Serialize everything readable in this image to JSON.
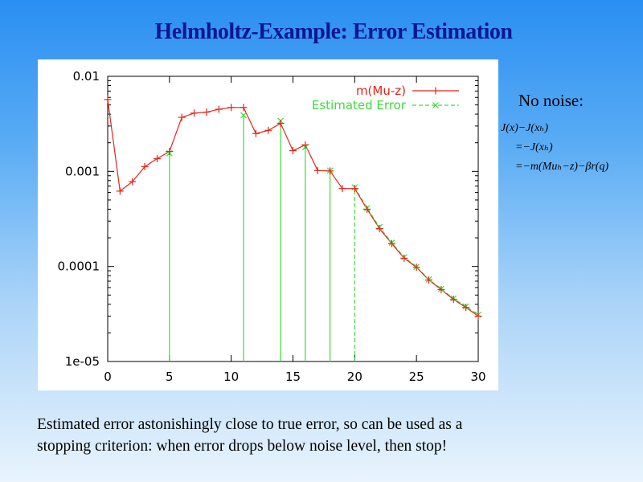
{
  "slide": {
    "title": "Helmholtz-Example: Error Estimation",
    "noise_heading": "No noise:",
    "formula_lines": [
      "J(x)−J(xₕ)",
      "=−J(xₕ)",
      "=−m(Muₕ−z)−βr(q)"
    ],
    "conclusion": "Estimated error astonishingly close to true error, so can be used as a stopping criterion: when error drops below noise level, then stop!"
  },
  "chart_data": {
    "type": "line",
    "xlim": [
      0,
      30
    ],
    "ylim": [
      1e-05,
      0.01
    ],
    "y_scale": "log",
    "x_ticks": [
      0,
      5,
      10,
      15,
      20,
      25,
      30
    ],
    "x_tick_labels": [
      "0",
      "5",
      "10",
      "15",
      "20",
      "25",
      "30"
    ],
    "y_ticks": [
      0.01,
      0.001,
      0.0001,
      1e-05
    ],
    "y_tick_labels": [
      "0.01",
      "0.001",
      "0.0001",
      "1e-05"
    ],
    "legend_position": "top-right",
    "grid": false,
    "colors": {
      "true_error": "#e8231b",
      "estimated_error": "#3ddc3a"
    },
    "series": [
      {
        "name": "m(Mu-z)",
        "style": "line-plus",
        "x": [
          0,
          1,
          2,
          3,
          4,
          5,
          6,
          7,
          8,
          9,
          10,
          11,
          12,
          13,
          14,
          15,
          16,
          17,
          18,
          19,
          20,
          21,
          22,
          23,
          24,
          25,
          26,
          27,
          28,
          29,
          30
        ],
        "y": [
          0.0057,
          0.00062,
          0.00078,
          0.00112,
          0.00136,
          0.00162,
          0.0037,
          0.0041,
          0.0042,
          0.0045,
          0.0047,
          0.0047,
          0.0025,
          0.0027,
          0.0032,
          0.00165,
          0.0019,
          0.00102,
          0.00101,
          0.00066,
          0.00066,
          0.0004,
          0.00025,
          0.000174,
          0.000122,
          9.8e-05,
          7.2e-05,
          5.7e-05,
          4.5e-05,
          3.7e-05,
          3e-05
        ]
      },
      {
        "name": "Estimated Error",
        "style": "dashed-x",
        "x": [
          5,
          11,
          14,
          16,
          18,
          20,
          21,
          22,
          23,
          24,
          25,
          26,
          27,
          28,
          29,
          30
        ],
        "y": [
          0.00155,
          0.0039,
          0.0034,
          0.0018,
          0.00102,
          0.00068,
          0.00041,
          0.00026,
          0.000178,
          0.000125,
          9.9e-05,
          7.3e-05,
          5.8e-05,
          4.6e-05,
          3.8e-05,
          3.1e-05
        ],
        "drop_lines_x": [
          5,
          11,
          14,
          16,
          18,
          20
        ]
      }
    ]
  }
}
